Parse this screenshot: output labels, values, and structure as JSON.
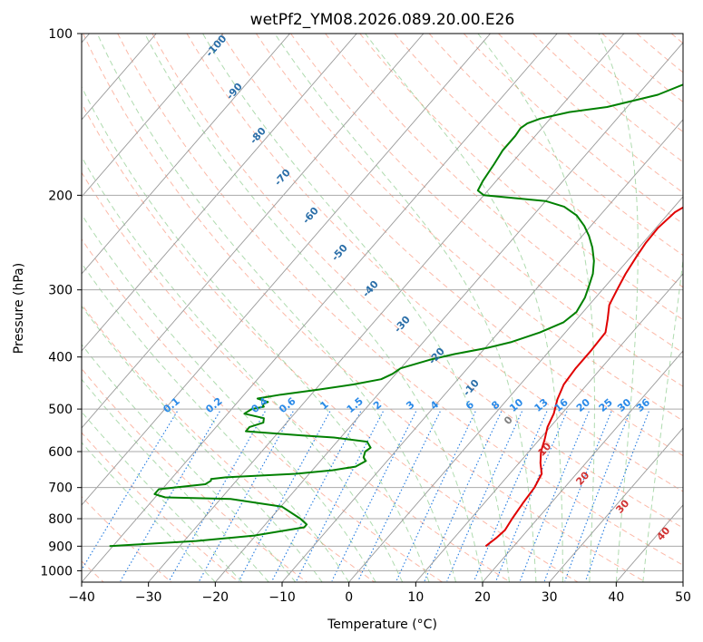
{
  "chart_data": {
    "type": "skew-t",
    "title": "wetPf2_YM08.2026.089.20.00.E26",
    "xlabel": "Temperature (°C)",
    "ylabel": "Pressure (hPa)",
    "xlim": [
      -40,
      50
    ],
    "ylim_hpa": [
      1050,
      100
    ],
    "xticks": [
      -40,
      -30,
      -20,
      -10,
      0,
      10,
      20,
      30,
      40,
      50
    ],
    "yticks": [
      100,
      200,
      300,
      400,
      500,
      600,
      700,
      800,
      900,
      1000
    ],
    "grid": true,
    "series": [
      {
        "name": "temperature",
        "color": "#e00000",
        "points": [
          [
            900,
            15.8
          ],
          [
            870,
            16.3
          ],
          [
            840,
            16.6
          ],
          [
            800,
            16.2
          ],
          [
            750,
            15.8
          ],
          [
            700,
            15.5
          ],
          [
            660,
            14.8
          ],
          [
            630,
            13.2
          ],
          [
            600,
            11.8
          ],
          [
            570,
            10.8
          ],
          [
            540,
            9.6
          ],
          [
            510,
            8.8
          ],
          [
            480,
            7.5
          ],
          [
            450,
            6.5
          ],
          [
            420,
            6.2
          ],
          [
            390,
            6.2
          ],
          [
            360,
            6.0
          ],
          [
            340,
            4.6
          ],
          [
            320,
            3.0
          ],
          [
            300,
            2.2
          ],
          [
            280,
            1.4
          ],
          [
            260,
            0.8
          ],
          [
            245,
            0.4
          ],
          [
            230,
            0.3
          ],
          [
            215,
            0.8
          ],
          [
            200,
            2.9
          ],
          [
            190,
            4.6
          ],
          [
            180,
            5.8
          ],
          [
            170,
            6.8
          ],
          [
            160,
            7.5
          ],
          [
            155,
            8.0
          ],
          [
            150,
            8.8
          ],
          [
            145,
            9.5
          ],
          [
            140,
            9.9
          ],
          [
            135,
            10.2
          ],
          [
            125,
            10.3
          ],
          [
            118,
            10.5
          ],
          [
            112,
            10.8
          ],
          [
            105,
            11.3
          ],
          [
            100,
            12.0
          ]
        ]
      },
      {
        "name": "dewpoint",
        "color": "#008000",
        "points": [
          [
            900,
            -40.5
          ],
          [
            880,
            -28.2
          ],
          [
            860,
            -20.2
          ],
          [
            830,
            -13.8
          ],
          [
            820,
            -13.8
          ],
          [
            800,
            -15.5
          ],
          [
            760,
            -19.8
          ],
          [
            735,
            -28.5
          ],
          [
            730,
            -38.5
          ],
          [
            720,
            -40.5
          ],
          [
            705,
            -40.5
          ],
          [
            690,
            -34.2
          ],
          [
            680,
            -33.8
          ],
          [
            675,
            -34.0
          ],
          [
            670,
            -32.0
          ],
          [
            660,
            -22.0
          ],
          [
            650,
            -17.0
          ],
          [
            640,
            -14.0
          ],
          [
            625,
            -13.2
          ],
          [
            615,
            -14.0
          ],
          [
            600,
            -14.5
          ],
          [
            590,
            -14.2
          ],
          [
            575,
            -15.5
          ],
          [
            565,
            -21.0
          ],
          [
            560,
            -26.0
          ],
          [
            550,
            -35.0
          ],
          [
            540,
            -35.0
          ],
          [
            530,
            -33.5
          ],
          [
            520,
            -34.0
          ],
          [
            510,
            -37.5
          ],
          [
            500,
            -37.0
          ],
          [
            495,
            -35.5
          ],
          [
            490,
            -36.0
          ],
          [
            485,
            -35.5
          ],
          [
            478,
            -37.5
          ],
          [
            470,
            -34.5
          ],
          [
            460,
            -29.5
          ],
          [
            450,
            -25.0
          ],
          [
            440,
            -21.5
          ],
          [
            430,
            -20.5
          ],
          [
            420,
            -20.0
          ],
          [
            405,
            -16.8
          ],
          [
            395,
            -13.8
          ],
          [
            385,
            -9.8
          ],
          [
            375,
            -6.8
          ],
          [
            360,
            -3.8
          ],
          [
            345,
            -1.6
          ],
          [
            330,
            -1.0
          ],
          [
            310,
            -1.6
          ],
          [
            295,
            -2.5
          ],
          [
            280,
            -3.5
          ],
          [
            265,
            -5.0
          ],
          [
            250,
            -7.0
          ],
          [
            238,
            -9.0
          ],
          [
            228,
            -11.0
          ],
          [
            218,
            -13.5
          ],
          [
            210,
            -16.5
          ],
          [
            205,
            -20.0
          ],
          [
            200,
            -30.0
          ],
          [
            196,
            -31.5
          ],
          [
            188,
            -32.0
          ],
          [
            175,
            -32.5
          ],
          [
            165,
            -33.0
          ],
          [
            155,
            -33.0
          ],
          [
            150,
            -33.2
          ],
          [
            147,
            -32.8
          ],
          [
            144,
            -31.5
          ],
          [
            140,
            -28.0
          ],
          [
            137,
            -23.0
          ],
          [
            130,
            -17.0
          ],
          [
            120,
            -12.5
          ],
          [
            110,
            -9.0
          ],
          [
            100,
            -5.5
          ]
        ]
      }
    ],
    "dry_adiabat_labels": [
      "-100",
      "-90",
      "-80",
      "-70",
      "-60",
      "-50",
      "-40",
      "-30",
      "-20",
      "-10"
    ],
    "mixing_ratio_labels": [
      "0.1",
      "0.2",
      "0.4",
      "0.6",
      "1",
      "1.5",
      "2",
      "3",
      "4",
      "6",
      "8",
      "10",
      "13",
      "16",
      "20",
      "25",
      "30",
      "36"
    ],
    "moist_adiabat_labels": [
      "0",
      "10",
      "20",
      "30",
      "40"
    ],
    "colors": {
      "temperature": "#e00000",
      "dewpoint": "#008000",
      "isotherm": "#999999",
      "dry_adiabat": "#fa8060",
      "moist_adiabat": "#5fb85f",
      "mixing_ratio": "#1e78e0",
      "dry_label": "#2a6ea8",
      "mixing_label": "#2a8ae8",
      "moist_label_cold": "#808080",
      "moist_label_warm": "#d03030",
      "special_adiabat": "#d8b890"
    }
  }
}
